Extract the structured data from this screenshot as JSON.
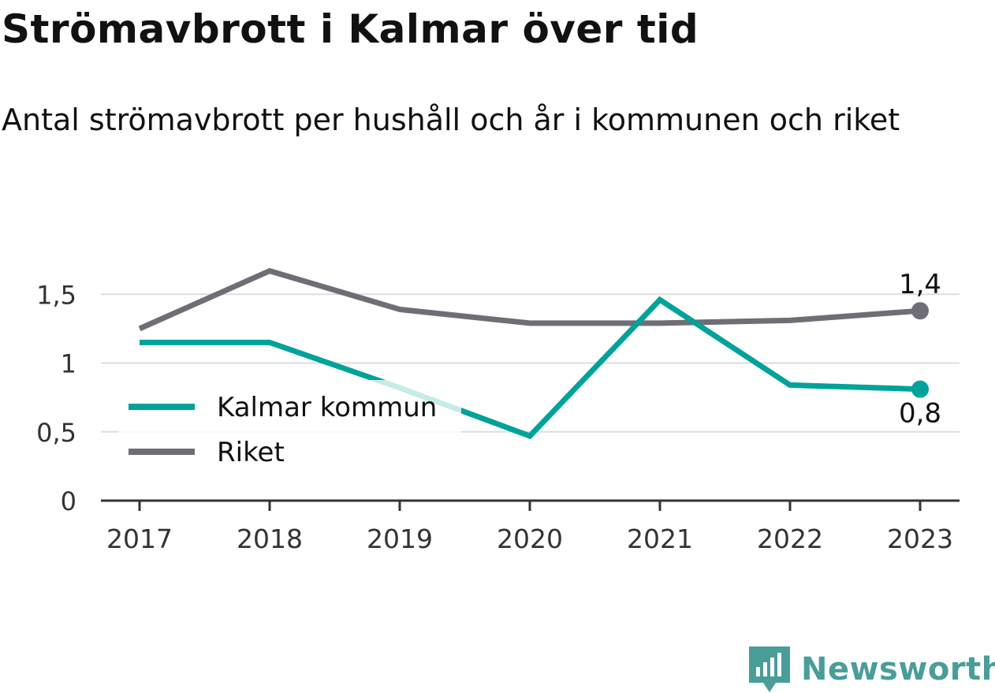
{
  "title": "Strömavbrott i Kalmar över tid",
  "subtitle": "Antal strömavbrott per hushåll och år i kommunen och riket",
  "brand": {
    "name": "Newsworthy",
    "icon": "newsworthy-logo-icon",
    "color": "#4a9d99"
  },
  "chart_data": {
    "type": "line",
    "categories": [
      "2017",
      "2018",
      "2019",
      "2020",
      "2021",
      "2022",
      "2023"
    ],
    "series": [
      {
        "name": "Kalmar kommun",
        "color": "#00a29a",
        "values": [
          1.15,
          1.15,
          0.82,
          0.47,
          1.46,
          0.84,
          0.81
        ],
        "end_label": "0,8"
      },
      {
        "name": "Riket",
        "color": "#6f6e77",
        "values": [
          1.25,
          1.67,
          1.39,
          1.29,
          1.29,
          1.31,
          1.38
        ],
        "end_label": "1,4"
      }
    ],
    "yticks": [
      {
        "value": 0,
        "label": "0"
      },
      {
        "value": 0.5,
        "label": "0,5"
      },
      {
        "value": 1,
        "label": "1"
      },
      {
        "value": 1.5,
        "label": "1,5"
      }
    ],
    "ylim": [
      0,
      1.8
    ],
    "grid": true,
    "legend": "bottom-left"
  }
}
